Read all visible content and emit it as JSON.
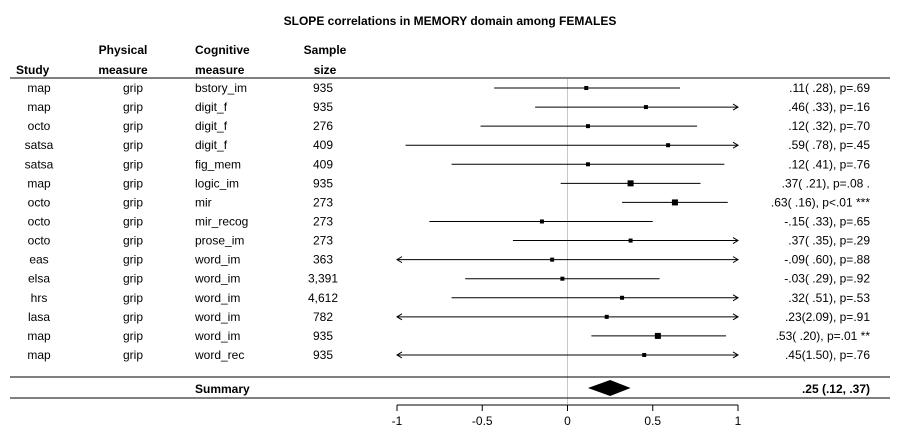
{
  "chart_data": {
    "type": "forest",
    "title": "SLOPE correlations in MEMORY domain among FEMALES",
    "headers": {
      "study": [
        "Study"
      ],
      "physical": [
        "Physical",
        "measure"
      ],
      "cognitive": [
        "Cognitive",
        "measure"
      ],
      "sample": [
        "Sample",
        "size"
      ]
    },
    "xlim": [
      -1,
      1
    ],
    "ticks": [
      -1,
      -0.5,
      0,
      0.5,
      1
    ],
    "tick_labels": [
      "-1",
      "-0.5",
      "0",
      "0.5",
      "1"
    ],
    "rows": [
      {
        "study": "map",
        "physical": "grip",
        "cognitive": "bstory_im",
        "n": "935",
        "est": 0.11,
        "lo": -0.43,
        "hi": 0.66,
        "arrow_lo": false,
        "arrow_hi": false,
        "label": ".11( .28), p=.69"
      },
      {
        "study": "map",
        "physical": "grip",
        "cognitive": "digit_f",
        "n": "935",
        "est": 0.46,
        "lo": -0.19,
        "hi": 1.0,
        "arrow_lo": false,
        "arrow_hi": true,
        "label": ".46( .33), p=.16"
      },
      {
        "study": "octo",
        "physical": "grip",
        "cognitive": "digit_f",
        "n": "276",
        "est": 0.12,
        "lo": -0.51,
        "hi": 0.76,
        "arrow_lo": false,
        "arrow_hi": false,
        "label": ".12( .32), p=.70"
      },
      {
        "study": "satsa",
        "physical": "grip",
        "cognitive": "digit_f",
        "n": "409",
        "est": 0.59,
        "lo": -0.95,
        "hi": 1.0,
        "arrow_lo": false,
        "arrow_hi": true,
        "label": ".59( .78), p=.45"
      },
      {
        "study": "satsa",
        "physical": "grip",
        "cognitive": "fig_mem",
        "n": "409",
        "est": 0.12,
        "lo": -0.68,
        "hi": 0.92,
        "arrow_lo": false,
        "arrow_hi": false,
        "label": ".12( .41), p=.76"
      },
      {
        "study": "map",
        "physical": "grip",
        "cognitive": "logic_im",
        "n": "935",
        "est": 0.37,
        "lo": -0.04,
        "hi": 0.78,
        "arrow_lo": false,
        "arrow_hi": false,
        "label": ".37( .21), p=.08 ."
      },
      {
        "study": "octo",
        "physical": "grip",
        "cognitive": "mir",
        "n": "273",
        "est": 0.63,
        "lo": 0.32,
        "hi": 0.94,
        "arrow_lo": false,
        "arrow_hi": false,
        "label": ".63( .16), p<.01 ***"
      },
      {
        "study": "octo",
        "physical": "grip",
        "cognitive": "mir_recog",
        "n": "273",
        "est": -0.15,
        "lo": -0.81,
        "hi": 0.5,
        "arrow_lo": false,
        "arrow_hi": false,
        "label": "-.15( .33), p=.65"
      },
      {
        "study": "octo",
        "physical": "grip",
        "cognitive": "prose_im",
        "n": "273",
        "est": 0.37,
        "lo": -0.32,
        "hi": 1.0,
        "arrow_lo": false,
        "arrow_hi": true,
        "label": ".37( .35), p=.29"
      },
      {
        "study": "eas",
        "physical": "grip",
        "cognitive": "word_im",
        "n": "363",
        "est": -0.09,
        "lo": -1.0,
        "hi": 1.0,
        "arrow_lo": true,
        "arrow_hi": true,
        "label": "-.09( .60), p=.88"
      },
      {
        "study": "elsa",
        "physical": "grip",
        "cognitive": "word_im",
        "n": "3,391",
        "est": -0.03,
        "lo": -0.6,
        "hi": 0.54,
        "arrow_lo": false,
        "arrow_hi": false,
        "label": "-.03( .29), p=.92"
      },
      {
        "study": "hrs",
        "physical": "grip",
        "cognitive": "word_im",
        "n": "4,612",
        "est": 0.32,
        "lo": -0.68,
        "hi": 1.0,
        "arrow_lo": false,
        "arrow_hi": true,
        "label": ".32( .51), p=.53"
      },
      {
        "study": "lasa",
        "physical": "grip",
        "cognitive": "word_im",
        "n": "782",
        "est": 0.23,
        "lo": -1.0,
        "hi": 1.0,
        "arrow_lo": true,
        "arrow_hi": true,
        "label": ".23(2.09), p=.91"
      },
      {
        "study": "map",
        "physical": "grip",
        "cognitive": "word_im",
        "n": "935",
        "est": 0.53,
        "lo": 0.14,
        "hi": 0.93,
        "arrow_lo": false,
        "arrow_hi": false,
        "label": ".53( .20), p=.01 **"
      },
      {
        "study": "map",
        "physical": "grip",
        "cognitive": "word_rec",
        "n": "935",
        "est": 0.45,
        "lo": -1.0,
        "hi": 1.0,
        "arrow_lo": true,
        "arrow_hi": true,
        "label": ".45(1.50), p=.76"
      }
    ],
    "summary": {
      "label": "Summary",
      "est": 0.25,
      "lo": 0.12,
      "hi": 0.37,
      "text": ".25 (.12, .37)"
    }
  }
}
